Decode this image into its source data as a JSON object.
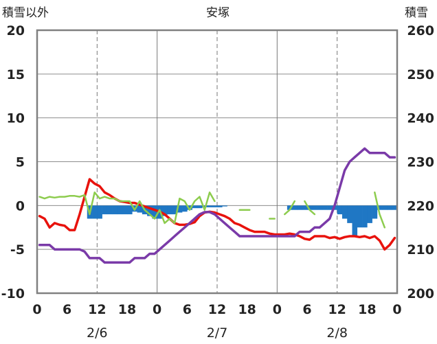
{
  "chart_data": {
    "type": "line",
    "title": "安塚",
    "left_axis_title": "積雪以外",
    "right_axis_title": "積雪",
    "left_ylim": [
      -10,
      20
    ],
    "left_ticks": [
      "20",
      "15",
      "10",
      "5",
      "0",
      "-5",
      "-10"
    ],
    "right_ylim": [
      200,
      260
    ],
    "right_ticks": [
      "260",
      "250",
      "240",
      "230",
      "220",
      "210",
      "200"
    ],
    "x_range_hours": [
      0,
      72
    ],
    "x_tick_labels": [
      "0",
      "6",
      "12",
      "18",
      "0",
      "6",
      "12",
      "18",
      "0",
      "6",
      "12",
      "18",
      "0"
    ],
    "date_labels": [
      "2/6",
      "2/7",
      "2/8"
    ],
    "grid": "dashed vertical at 12h, solid day separators",
    "series": [
      {
        "name": "",
        "kind": "bar",
        "axis": "left",
        "color": "#1f77c4",
        "values": [
          0,
          0,
          0,
          0,
          0,
          0,
          0,
          0,
          0,
          0,
          -1.5,
          -1.5,
          -1.5,
          -1.0,
          -1.0,
          -1.0,
          -1.0,
          -1.0,
          -1.0,
          -0.7,
          -0.8,
          -1.0,
          -1.2,
          -1.5,
          -1.5,
          -1.2,
          -1.0,
          -1.0,
          -0.8,
          -0.7,
          -0.5,
          -0.3,
          -0.3,
          -0.2,
          -0.2,
          -0.2,
          -0.2,
          -0.1,
          0,
          0,
          0,
          0,
          0,
          0,
          0,
          0,
          0,
          0,
          0,
          0,
          -0.5,
          -0.5,
          -0.5,
          -0.5,
          -0.5,
          -0.5,
          -0.5,
          -0.5,
          -0.5,
          -0.5,
          -1.0,
          -1.5,
          -2.0,
          -3.5,
          -2.5,
          -2.5,
          -2.0,
          -1.5,
          -0.5,
          -0.5,
          -0.5,
          -0.5
        ]
      },
      {
        "name": "",
        "kind": "line",
        "axis": "left",
        "color": "#e8120c",
        "values": [
          -1.2,
          -1.5,
          -2.5,
          -2.0,
          -2.2,
          -2.3,
          -2.8,
          -2.8,
          -1.0,
          1.0,
          3.0,
          2.5,
          2.2,
          1.5,
          1.2,
          0.8,
          0.5,
          0.4,
          0.3,
          0.3,
          0.1,
          -0.1,
          -0.3,
          -0.5,
          -0.7,
          -1.0,
          -1.5,
          -2.0,
          -2.2,
          -2.2,
          -2.1,
          -1.9,
          -1.2,
          -0.8,
          -0.7,
          -0.8,
          -1.0,
          -1.2,
          -1.5,
          -2.0,
          -2.2,
          -2.5,
          -2.8,
          -3.0,
          -3.0,
          -3.0,
          -3.2,
          -3.3,
          -3.3,
          -3.3,
          -3.2,
          -3.3,
          -3.5,
          -3.8,
          -3.9,
          -3.5,
          -3.5,
          -3.5,
          -3.7,
          -3.6,
          -3.8,
          -3.6,
          -3.5,
          -3.5,
          -3.6,
          -3.5,
          -3.7,
          -3.5,
          -4.0,
          -5.0,
          -4.5,
          -3.7
        ]
      },
      {
        "name": "",
        "kind": "line",
        "axis": "left",
        "color": "#8dcc4e",
        "values": [
          1.0,
          0.8,
          1.0,
          0.9,
          1.0,
          1.0,
          1.1,
          1.1,
          1.0,
          1.2,
          -1.0,
          1.5,
          0.8,
          1.0,
          0.8,
          0.8,
          0.5,
          0.5,
          0.5,
          -0.5,
          0.5,
          -0.5,
          -1.0,
          -1.5,
          -0.5,
          -2.0,
          -1.5,
          -2.0,
          0.8,
          0.5,
          -0.5,
          0.5,
          1.0,
          -0.5,
          1.5,
          0.5,
          null,
          -1.0,
          null,
          null,
          -0.5,
          -0.5,
          -0.5,
          null,
          null,
          null,
          -1.5,
          -1.5,
          null,
          -1.0,
          -0.5,
          0.5,
          null,
          0.5,
          -0.5,
          -1.0,
          null,
          null,
          null,
          null,
          -1.0,
          null,
          null,
          -2.0,
          null,
          -1.0,
          null,
          1.5,
          -1.0,
          -2.5,
          null,
          null
        ]
      },
      {
        "name": "",
        "kind": "line",
        "axis": "right",
        "color": "#7a3aa8",
        "values": [
          211,
          211,
          211,
          210,
          210,
          210,
          210,
          210,
          210,
          209.5,
          208,
          208,
          208,
          207,
          207,
          207,
          207,
          207,
          207,
          208,
          208,
          208,
          209,
          209,
          210,
          211,
          212,
          213,
          214,
          215,
          216,
          217,
          218,
          218.5,
          218.5,
          218,
          217,
          216,
          215,
          214,
          213,
          213,
          213,
          213,
          213,
          213,
          213,
          213,
          213,
          213,
          213,
          213,
          214,
          214,
          214,
          215,
          215,
          216,
          217,
          220,
          224,
          228,
          230,
          231,
          232,
          233,
          232,
          232,
          232,
          232,
          231,
          231
        ]
      }
    ]
  }
}
